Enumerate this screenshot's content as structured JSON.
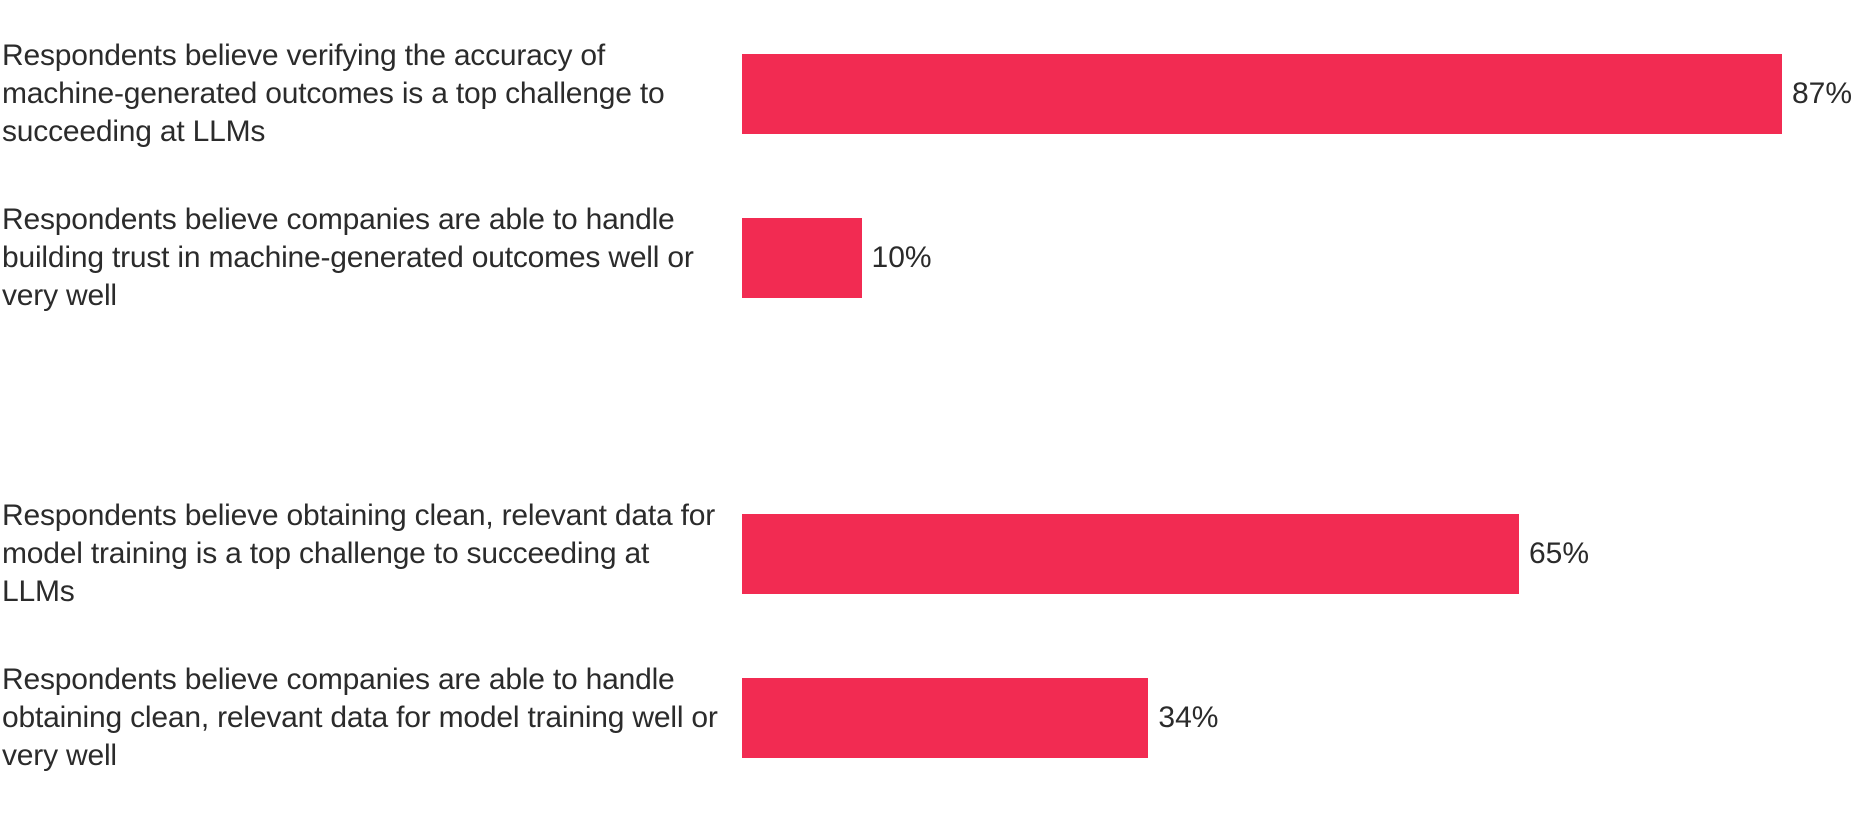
{
  "chart_data": {
    "type": "bar",
    "orientation": "horizontal",
    "categories": [
      "Respondents believe verifying the accuracy of machine-generated outcomes is a top challenge to succeeding at LLMs",
      "Respondents believe companies are able to handle building trust in machine-generated outcomes well or very well",
      "Respondents believe obtaining clean, relevant data for model training is a top challenge to succeeding at LLMs",
      "Respondents believe companies are able to handle obtaining clean, relevant data for model training well or very well"
    ],
    "values": [
      87,
      10,
      65,
      34
    ],
    "value_labels": [
      "87%",
      "10%",
      "65%",
      "34%"
    ],
    "xlim": [
      0,
      100
    ],
    "grid": false,
    "bar_color": "#f22b52"
  }
}
